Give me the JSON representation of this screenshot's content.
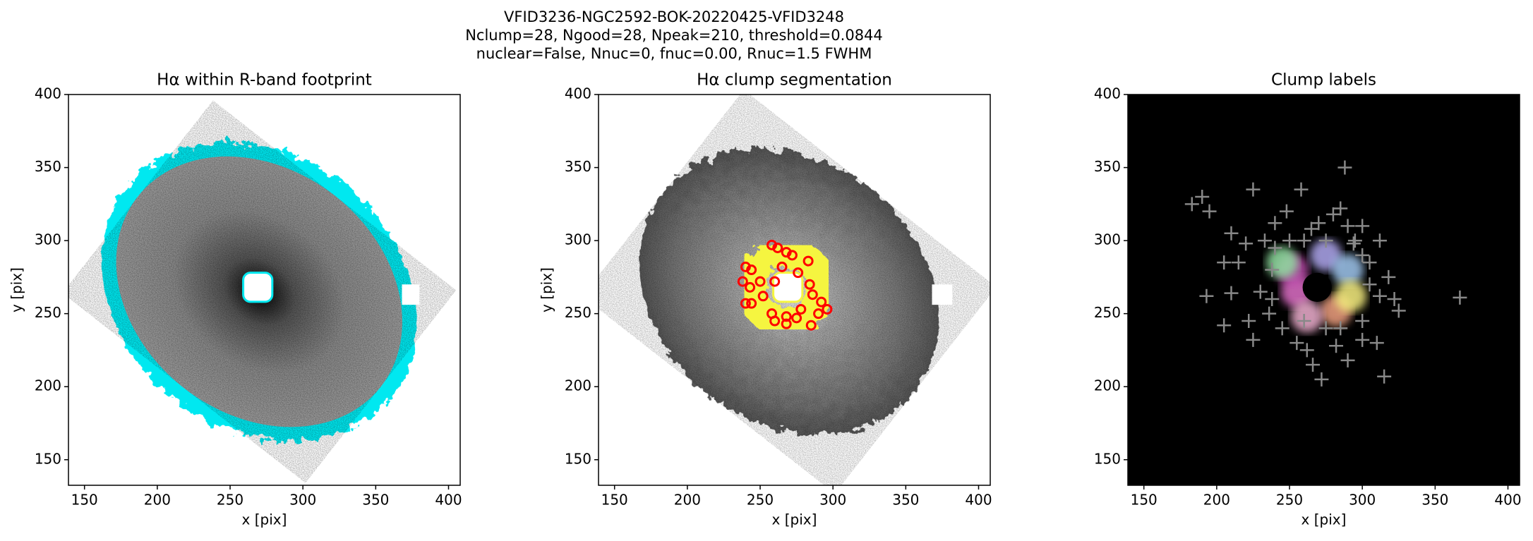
{
  "figure": {
    "title_lines": [
      "VFID3236-NGC2592-BOK-20220425-VFID3248",
      "Nclump=28, Ngood=28, Npeak=210, threshold=0.0844",
      "nuclear=False, Nnuc=0, fnuc=0.00, Rnuc=1.5 FWHM"
    ]
  },
  "chart_data": [
    {
      "type": "image",
      "title": "Hα within R-band footprint",
      "xlabel": "x [pix]",
      "ylabel": "y [pix]",
      "xlim": [
        139,
        408
      ],
      "ylim": [
        132.5,
        400
      ],
      "xticks": [
        150,
        200,
        250,
        300,
        350,
        400
      ],
      "yticks": [
        150,
        200,
        250,
        300,
        350,
        400
      ]
    },
    {
      "type": "image",
      "title": "Hα clump segmentation",
      "xlabel": "x [pix]",
      "ylabel": "y [pix]",
      "xlim": [
        139,
        408
      ],
      "ylim": [
        132.5,
        400
      ],
      "xticks": [
        150,
        200,
        250,
        300,
        350,
        400
      ],
      "yticks": [
        150,
        200,
        250,
        300,
        350,
        400
      ],
      "clumps": {
        "color": "#ff0000",
        "x": [
          258,
          268,
          272,
          265,
          283,
          240,
          244,
          238,
          243,
          250,
          260,
          276,
          284,
          286,
          292,
          296,
          290,
          278,
          268,
          258,
          260,
          268,
          275,
          285,
          240,
          244,
          252,
          262
        ],
        "y": [
          297,
          292,
          290,
          282,
          286,
          282,
          280,
          272,
          268,
          272,
          272,
          278,
          270,
          263,
          258,
          253,
          250,
          253,
          248,
          250,
          245,
          243,
          247,
          242,
          257,
          257,
          262,
          295
        ]
      }
    },
    {
      "type": "image",
      "title": "Clump labels",
      "xlabel": "x [pix]",
      "ylabel": null,
      "xlim": [
        139,
        408
      ],
      "ylim": [
        132.5,
        400
      ],
      "xticks": [
        150,
        200,
        250,
        300,
        350,
        400
      ],
      "yticks": [
        150,
        200,
        250,
        300,
        350,
        400
      ],
      "peaks": {
        "color": "#888888",
        "x": [
          183,
          190,
          195,
          210,
          225,
          258,
          288,
          285,
          280,
          270,
          248,
          240,
          233,
          220,
          215,
          205,
          193,
          210,
          230,
          222,
          205,
          225,
          245,
          255,
          262,
          266,
          272,
          282,
          290,
          300,
          315,
          310,
          322,
          325,
          318,
          312,
          300,
          305,
          300,
          312,
          305,
          295,
          290,
          275,
          260,
          250,
          240,
          238,
          238,
          236,
          260,
          275,
          285,
          367,
          294,
          265,
          300
        ],
        "y": [
          325,
          330,
          320,
          305,
          335,
          335,
          350,
          322,
          318,
          312,
          320,
          312,
          300,
          298,
          285,
          285,
          262,
          264,
          265,
          245,
          242,
          232,
          240,
          230,
          225,
          215,
          205,
          228,
          218,
          232,
          207,
          230,
          260,
          252,
          275,
          262,
          245,
          270,
          290,
          300,
          285,
          300,
          310,
          300,
          300,
          300,
          295,
          280,
          260,
          250,
          245,
          240,
          240,
          261,
          298,
          308,
          310
        ]
      }
    }
  ]
}
